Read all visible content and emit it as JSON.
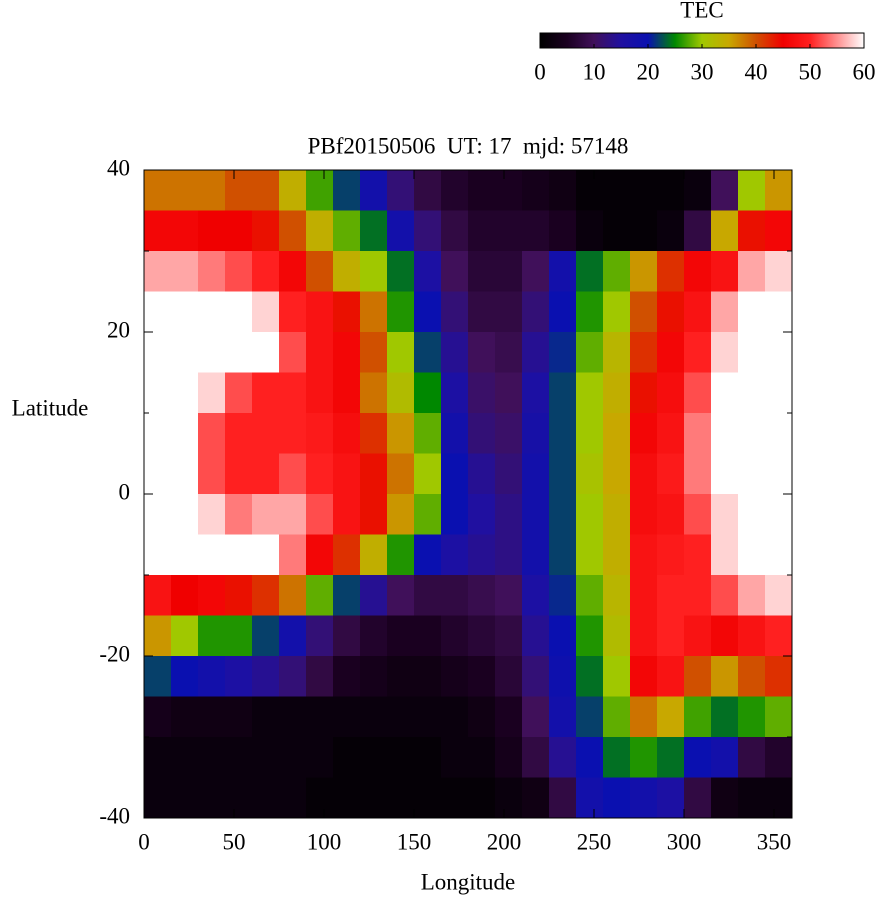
{
  "chart_data": {
    "type": "heatmap",
    "title": "PBf20150506  UT: 17  mjd: 57148",
    "xlabel": "Longitude",
    "ylabel": "Latitude",
    "xlim": [
      0,
      360
    ],
    "xticks": [
      0,
      50,
      100,
      150,
      200,
      250,
      300,
      350
    ],
    "ylim": [
      -40,
      40
    ],
    "yticks": [
      -40,
      -20,
      0,
      20,
      40
    ],
    "yminorticks": [
      -30,
      -10,
      10,
      30
    ],
    "x": [
      7.5,
      22.5,
      37.5,
      52.5,
      67.5,
      82.5,
      97.5,
      112.5,
      127.5,
      142.5,
      157.5,
      172.5,
      187.5,
      202.5,
      217.5,
      232.5,
      247.5,
      262.5,
      277.5,
      292.5,
      307.5,
      322.5,
      337.5,
      352.5
    ],
    "y": [
      37.5,
      32.5,
      27.5,
      22.5,
      17.5,
      12.5,
      7.5,
      2.5,
      -2.5,
      -7.5,
      -12.5,
      -17.5,
      -22.5,
      -27.5,
      -32.5,
      -37.5
    ],
    "values": [
      [
        38,
        38,
        38,
        40,
        40,
        34,
        27,
        22,
        18,
        12,
        8,
        6,
        5,
        5,
        4,
        3,
        1,
        1,
        1,
        1,
        2,
        10,
        30,
        36
      ],
      [
        46,
        46,
        45,
        45,
        44,
        40,
        34,
        28,
        24,
        18,
        12,
        8,
        6,
        6,
        6,
        5,
        2,
        1,
        1,
        2,
        8,
        35,
        44,
        46
      ],
      [
        56,
        56,
        54,
        52,
        50,
        46,
        40,
        34,
        30,
        24,
        16,
        10,
        7,
        7,
        10,
        18,
        24,
        28,
        36,
        42,
        46,
        48,
        56,
        58
      ],
      [
        60,
        60,
        60,
        60,
        58,
        50,
        48,
        44,
        38,
        26,
        20,
        12,
        8,
        8,
        12,
        20,
        26,
        30,
        40,
        44,
        48,
        56,
        60,
        60
      ],
      [
        60,
        60,
        60,
        60,
        60,
        52,
        48,
        46,
        40,
        30,
        22,
        14,
        10,
        9,
        14,
        21,
        28,
        33,
        42,
        46,
        50,
        58,
        60,
        60
      ],
      [
        60,
        60,
        58,
        52,
        50,
        50,
        48,
        46,
        38,
        32,
        25,
        16,
        11,
        10,
        16,
        22,
        30,
        34,
        44,
        47,
        52,
        60,
        60,
        60
      ],
      [
        60,
        60,
        52,
        50,
        50,
        50,
        49,
        47,
        42,
        36,
        28,
        18,
        12,
        11,
        17,
        22,
        30,
        35,
        46,
        48,
        54,
        60,
        60,
        60
      ],
      [
        60,
        60,
        52,
        50,
        50,
        52,
        50,
        48,
        44,
        38,
        30,
        20,
        14,
        12,
        18,
        22,
        31,
        35,
        47,
        49,
        54,
        60,
        60,
        60
      ],
      [
        60,
        60,
        58,
        54,
        56,
        56,
        52,
        48,
        44,
        36,
        28,
        20,
        15,
        13,
        18,
        22,
        30,
        34,
        47,
        48,
        52,
        58,
        60,
        60
      ],
      [
        60,
        60,
        60,
        60,
        60,
        54,
        46,
        42,
        34,
        26,
        20,
        16,
        14,
        13,
        18,
        22,
        30,
        34,
        48,
        49,
        50,
        58,
        60,
        60
      ],
      [
        48,
        45,
        46,
        44,
        42,
        38,
        28,
        22,
        14,
        10,
        8,
        8,
        9,
        10,
        16,
        21,
        28,
        33,
        48,
        50,
        50,
        52,
        56,
        58
      ],
      [
        36,
        30,
        26,
        26,
        22,
        18,
        12,
        8,
        6,
        5,
        5,
        6,
        7,
        8,
        14,
        20,
        26,
        32,
        48,
        50,
        48,
        46,
        48,
        50
      ],
      [
        22,
        20,
        18,
        16,
        14,
        12,
        8,
        5,
        4,
        3,
        3,
        4,
        5,
        7,
        12,
        19,
        24,
        30,
        46,
        48,
        40,
        36,
        40,
        42
      ],
      [
        4,
        3,
        3,
        3,
        2,
        2,
        2,
        2,
        2,
        2,
        2,
        2,
        3,
        5,
        10,
        18,
        22,
        28,
        38,
        35,
        27,
        24,
        26,
        28
      ],
      [
        2,
        2,
        2,
        2,
        2,
        2,
        2,
        1,
        1,
        1,
        1,
        2,
        2,
        4,
        8,
        14,
        20,
        24,
        26,
        24,
        20,
        18,
        8,
        6
      ],
      [
        2,
        2,
        2,
        2,
        2,
        2,
        1,
        1,
        1,
        1,
        1,
        1,
        1,
        2,
        3,
        8,
        18,
        20,
        18,
        16,
        8,
        3,
        2,
        2
      ]
    ],
    "colorbar": {
      "label": "TEC",
      "lim": [
        0,
        60
      ],
      "ticks": [
        0,
        10,
        20,
        30,
        40,
        50,
        60
      ],
      "colors": [
        "#000000",
        "#1a0020",
        "#40105a",
        "#2010a0",
        "#0a10b0",
        "#008800",
        "#a0c800",
        "#c8a800",
        "#d05000",
        "#f00000",
        "#ff2020",
        "#ff9090",
        "#ffffff"
      ]
    }
  }
}
